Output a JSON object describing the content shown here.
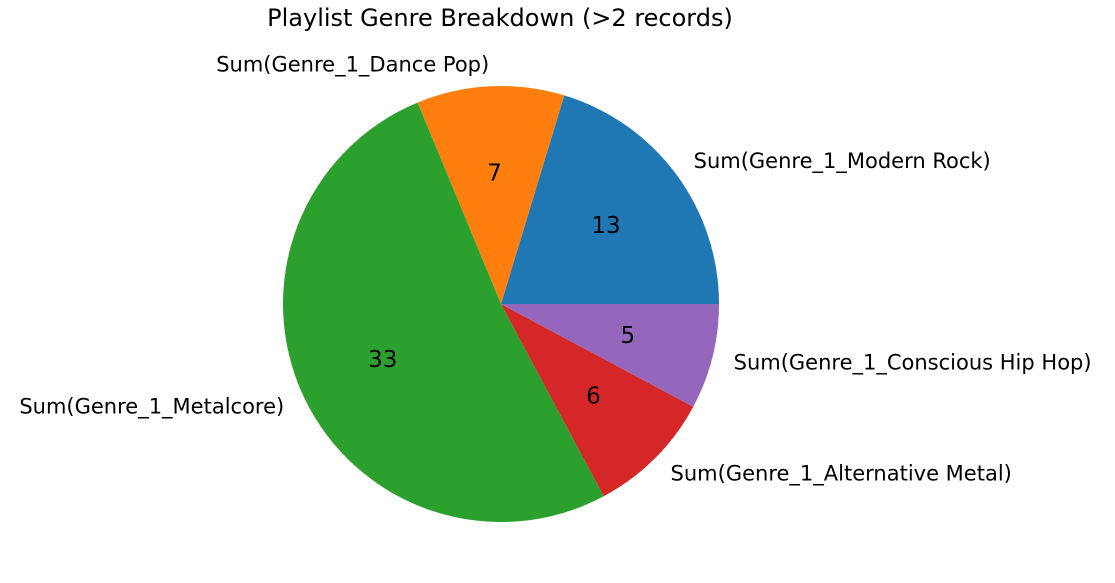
{
  "chart_data": {
    "type": "pie",
    "title": "Playlist Genre Breakdown (>2 records)",
    "categories": [
      "Sum(Genre_1_Modern Rock)",
      "Sum(Genre_1_Dance Pop)",
      "Sum(Genre_1_Metalcore)",
      "Sum(Genre_1_Alternative Metal)",
      "Sum(Genre_1_Conscious Hip Hop)"
    ],
    "values": [
      13,
      7,
      33,
      6,
      5
    ],
    "colors": [
      "#1f77b4",
      "#ff7f0e",
      "#2ca02c",
      "#d62728",
      "#9467bd"
    ],
    "start_angle_deg": 0,
    "direction": "counterclockwise",
    "value_labels_shown": true,
    "legend": "none"
  }
}
